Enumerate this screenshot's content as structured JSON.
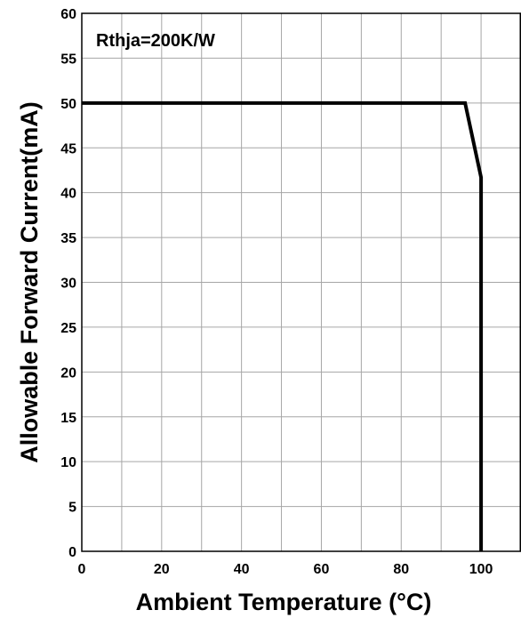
{
  "chart_data": {
    "type": "line",
    "xlabel": "Ambient Temperature (°C)",
    "ylabel": "Allowable Forward Current(mA)",
    "annotation": "Rthja=200K/W",
    "xlim": [
      0,
      110
    ],
    "ylim": [
      0,
      60
    ],
    "xticks": [
      0,
      20,
      40,
      60,
      80,
      100
    ],
    "yticks": [
      0,
      5,
      10,
      15,
      20,
      25,
      30,
      35,
      40,
      45,
      50,
      55,
      60
    ],
    "grid": true,
    "grid_x_step": 10,
    "grid_y_step": 5,
    "series": [
      {
        "color": "#000000",
        "x": [
          0,
          96,
          100,
          100
        ],
        "y": [
          50,
          50,
          41.7,
          0
        ]
      }
    ]
  }
}
